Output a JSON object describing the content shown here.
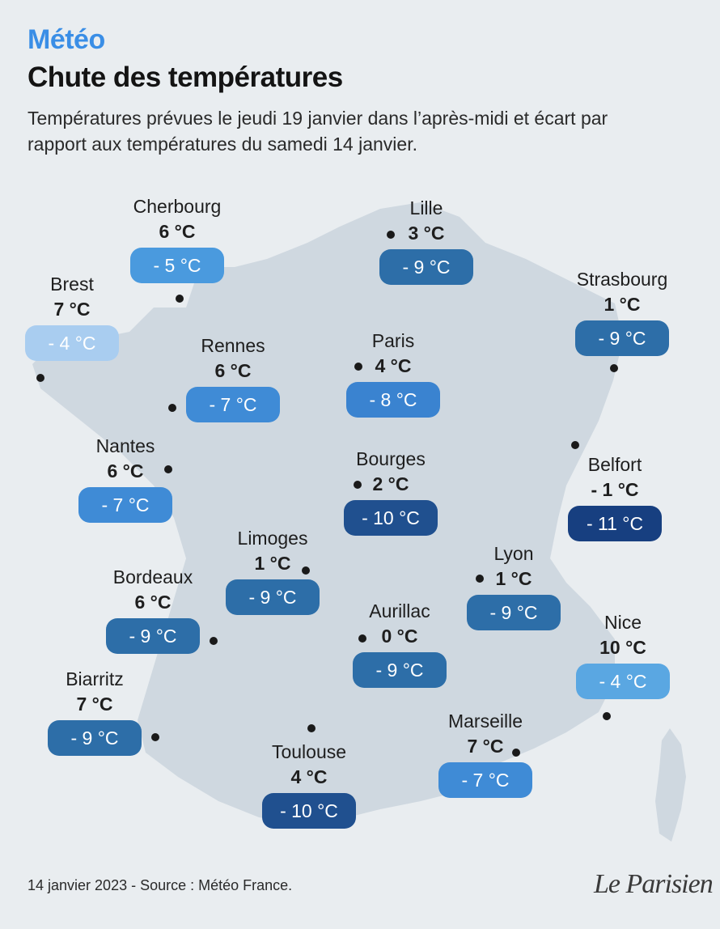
{
  "header": {
    "kicker": "Météo",
    "title": "Chute des températures",
    "subtitle": "Températures prévues le jeudi 19 janvier dans l’après-midi et écart par rapport aux températures du samedi 14 janvier."
  },
  "palette": {
    "diff_-4": "#5aa7e2",
    "diff_-5": "#4a9ade",
    "diff_-7": "#3f8bd6",
    "diff_-8": "#3a83d0",
    "diff_-9": "#2d6ea8",
    "diff_-10": "#20508f",
    "diff_-11": "#173f80",
    "diff_brest": "#a9cdf0",
    "land": "#cfd8e0",
    "background": "#e9edf0"
  },
  "cities": [
    {
      "name": "Cherbourg",
      "temp": "6 °C",
      "diff": "- 5 °C"
    },
    {
      "name": "Lille",
      "temp": "3 °C",
      "diff": "- 9 °C"
    },
    {
      "name": "Brest",
      "temp": "7 °C",
      "diff": "- 4 °C"
    },
    {
      "name": "Strasbourg",
      "temp": "1 °C",
      "diff": "- 9 °C"
    },
    {
      "name": "Rennes",
      "temp": "6 °C",
      "diff": "- 7 °C"
    },
    {
      "name": "Paris",
      "temp": "4 °C",
      "diff": "- 8 °C"
    },
    {
      "name": "Nantes",
      "temp": "6 °C",
      "diff": "- 7 °C"
    },
    {
      "name": "Bourges",
      "temp": "2 °C",
      "diff": "- 10 °C"
    },
    {
      "name": "Belfort",
      "temp": "- 1 °C",
      "diff": "- 11 °C"
    },
    {
      "name": "Limoges",
      "temp": "1 °C",
      "diff": "- 9 °C"
    },
    {
      "name": "Lyon",
      "temp": "1 °C",
      "diff": "- 9 °C"
    },
    {
      "name": "Bordeaux",
      "temp": "6 °C",
      "diff": "- 9 °C"
    },
    {
      "name": "Aurillac",
      "temp": "0 °C",
      "diff": "- 9 °C"
    },
    {
      "name": "Nice",
      "temp": "10 °C",
      "diff": "- 4 °C"
    },
    {
      "name": "Biarritz",
      "temp": "7 °C",
      "diff": "- 9 °C"
    },
    {
      "name": "Marseille",
      "temp": "7 °C",
      "diff": "- 7 °C"
    },
    {
      "name": "Toulouse",
      "temp": "4 °C",
      "diff": "- 10 °C"
    }
  ],
  "footer": {
    "source": "14 janvier 2023 - Source : Météo France.",
    "logo": "Le Parisien"
  }
}
